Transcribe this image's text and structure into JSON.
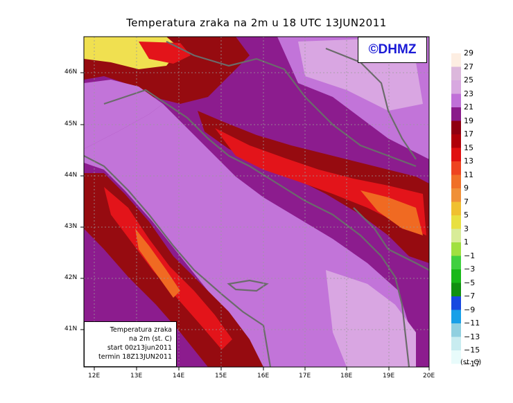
{
  "title": "Temperatura zraka na 2m u 18 UTC 13JUN2011",
  "credit": "©DHMZ",
  "infobox": {
    "line1": "Temperatura zraka",
    "line2": "na 2m (st. C)",
    "line3": "start 00z13jun2011",
    "line4": "termin 18Z13JUN2011"
  },
  "axes": {
    "lon_labels": [
      "12E",
      "13E",
      "14E",
      "15E",
      "16E",
      "17E",
      "18E",
      "19E",
      "20E"
    ],
    "lat_labels": [
      "46N",
      "45N",
      "44N",
      "43N",
      "42N",
      "41N"
    ]
  },
  "legend": {
    "unit": "(st. C)",
    "labels": [
      "29",
      "27",
      "25",
      "23",
      "21",
      "19",
      "17",
      "15",
      "13",
      "11",
      "9",
      "7",
      "5",
      "3",
      "1",
      "-1",
      "-3",
      "-5",
      "-7",
      "-9",
      "-11",
      "-13",
      "-15",
      "-17"
    ],
    "colors": [
      "#fdeee2",
      "#dcb8dc",
      "#d8a8e0",
      "#c070d8",
      "#8a1a8a",
      "#900010",
      "#b00008",
      "#e01010",
      "#ee4420",
      "#f07028",
      "#f09038",
      "#f0c030",
      "#e8e040",
      "#d8ec98",
      "#a0e040",
      "#40d040",
      "#18b818",
      "#109010",
      "#1848e0",
      "#18a0e8",
      "#90d0e0",
      "#c8ecf0",
      "#e8fbfb"
    ]
  },
  "colors": {
    "sea_violet": "#c274d9",
    "light_violet": "#d9a6e2",
    "purple": "#8c1c8e",
    "dark_red": "#960b10",
    "red": "#e3141a",
    "orange": "#f06a22",
    "yellow": "#f0e050",
    "coast": "#6b6b6b"
  }
}
